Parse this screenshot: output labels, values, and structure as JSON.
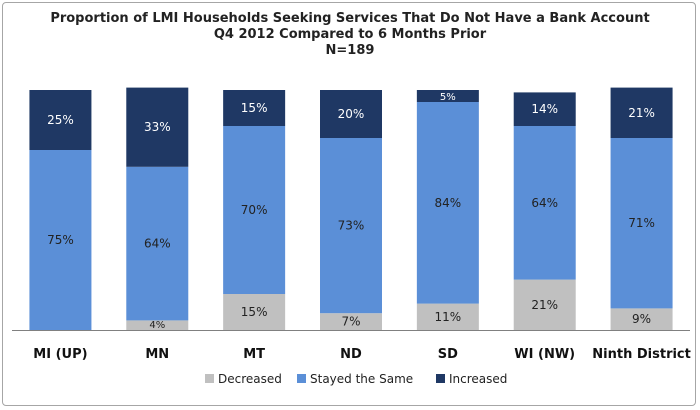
{
  "chart_data": {
    "type": "bar",
    "stacked": "percent",
    "title": [
      "Proportion of LMI Households Seeking Services That Do Not Have a Bank Account",
      "Q4 2012 Compared to 6 Months Prior",
      "N=189"
    ],
    "categories": [
      "MI (UP)",
      "MN",
      "MT",
      "ND",
      "SD",
      "WI (NW)",
      "Ninth District"
    ],
    "series": [
      {
        "name": "Decreased",
        "color": "#c0c0c0",
        "values": [
          0,
          4,
          15,
          7,
          11,
          21,
          9
        ],
        "labels": [
          "",
          "4%",
          "15%",
          "7%",
          "11%",
          "21%",
          "9%"
        ]
      },
      {
        "name": "Stayed the Same",
        "color": "#5b8fd7",
        "values": [
          75,
          64,
          70,
          73,
          84,
          64,
          71
        ],
        "labels": [
          "75%",
          "64%",
          "70%",
          "73%",
          "84%",
          "64%",
          "71%"
        ]
      },
      {
        "name": "Increased",
        "color": "#1f3864",
        "values": [
          25,
          33,
          15,
          20,
          5,
          14,
          21
        ],
        "labels": [
          "25%",
          "33%",
          "15%",
          "20%",
          "5%",
          "14%",
          "21%"
        ]
      }
    ],
    "ylim": [
      0,
      100
    ],
    "grid": false,
    "legend": "bottom"
  }
}
